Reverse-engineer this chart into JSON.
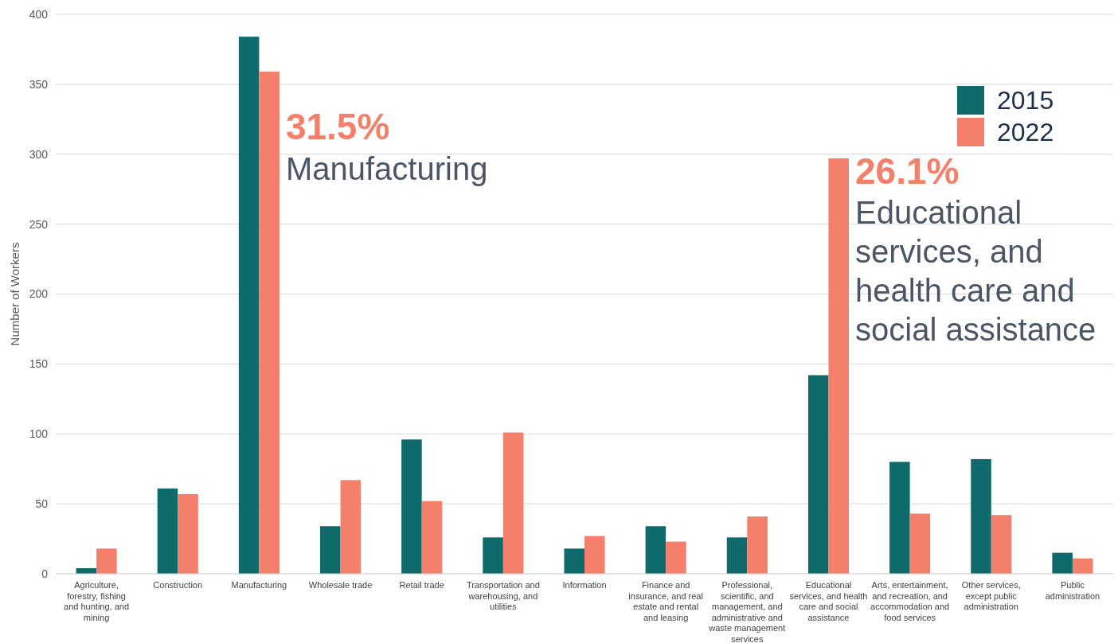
{
  "chart_data": {
    "type": "bar",
    "ylabel": "Number of Workers",
    "categories": [
      "Agriculture, forestry, fishing and hunting, and mining",
      "Construction",
      "Manufacturing",
      "Wholesale trade",
      "Retail trade",
      "Transportation and warehousing, and utilities",
      "Information",
      "Finance and insurance, and real estate and rental and leasing",
      "Professional, scientific, and management, and administrative and waste management services",
      "Educational services, and health care and social assistance",
      "Arts, entertainment, and recreation, and accommodation and food services",
      "Other services, except public administration",
      "Public administration"
    ],
    "series": [
      {
        "name": "2015",
        "color": "#0e6a6b",
        "values": [
          4,
          61,
          384,
          34,
          96,
          26,
          18,
          34,
          26,
          142,
          80,
          82,
          15
        ]
      },
      {
        "name": "2022",
        "color": "#f4806c",
        "values": [
          18,
          57,
          359,
          67,
          52,
          101,
          27,
          23,
          41,
          297,
          43,
          42,
          11
        ]
      }
    ],
    "ylim": [
      0,
      400
    ],
    "yticks": [
      0,
      50,
      100,
      150,
      200,
      250,
      300,
      350,
      400
    ],
    "grid": "y",
    "legend": "top right",
    "annotations": [
      {
        "text": "31.5%",
        "x": "Manufacturing",
        "y": 330
      },
      {
        "text": "Manufacturing",
        "x": "Manufacturing",
        "y": 298
      },
      {
        "text": "26.1%",
        "x": "Educational services, and health care and social assistance",
        "y": 298
      },
      {
        "text": "Educational services, and health care and social assistance",
        "x": "Educational services, and health care and social assistance",
        "y": 267
      }
    ]
  }
}
